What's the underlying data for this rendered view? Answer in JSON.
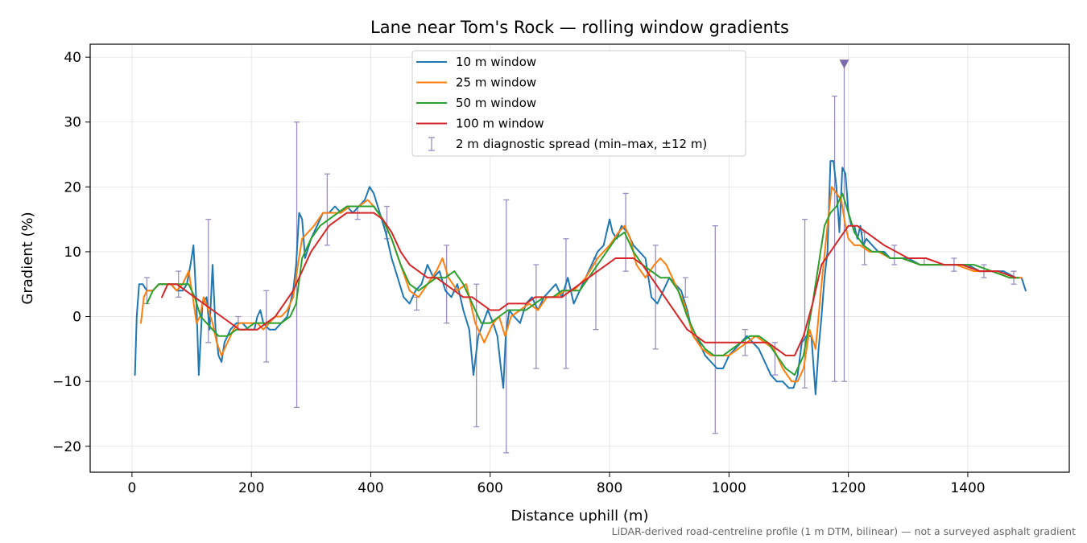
{
  "chart_data": {
    "type": "line",
    "title": "Lane near Tom's Rock — rolling window gradients",
    "xlabel": "Distance uphill (m)",
    "ylabel": "Gradient (%)",
    "xlim": [
      -70,
      1570
    ],
    "ylim": [
      -24,
      42
    ],
    "xticks": [
      0,
      200,
      400,
      600,
      800,
      1000,
      1200,
      1400
    ],
    "yticks": [
      -20,
      -10,
      0,
      10,
      20,
      30,
      40
    ],
    "xtick_labels": [
      "0",
      "200",
      "400",
      "600",
      "800",
      "1000",
      "1200",
      "1400"
    ],
    "ytick_labels": [
      "−20",
      "−10",
      "0",
      "10",
      "20",
      "30",
      "40"
    ],
    "grid": true,
    "legend_position": "top-center",
    "footnote": "LiDAR-derived road-centreline profile (1 m DTM, bilinear) — not a surveyed asphalt gradient",
    "series": [
      {
        "name": "10 m window",
        "color": "#1f77b4",
        "x": [
          5,
          8,
          12,
          18,
          25,
          35,
          45,
          55,
          65,
          75,
          85,
          92,
          98,
          103,
          108,
          112,
          118,
          125,
          130,
          135,
          140,
          145,
          150,
          155,
          165,
          175,
          185,
          195,
          205,
          210,
          215,
          220,
          230,
          240,
          250,
          260,
          265,
          270,
          275,
          280,
          285,
          290,
          300,
          310,
          320,
          330,
          340,
          350,
          360,
          370,
          380,
          390,
          398,
          405,
          415,
          425,
          435,
          445,
          455,
          465,
          475,
          485,
          495,
          505,
          515,
          525,
          535,
          545,
          555,
          565,
          572,
          580,
          588,
          596,
          605,
          612,
          618,
          622,
          626,
          632,
          640,
          650,
          660,
          670,
          680,
          690,
          700,
          710,
          720,
          730,
          740,
          750,
          760,
          770,
          780,
          790,
          800,
          805,
          812,
          820,
          830,
          840,
          850,
          860,
          870,
          880,
          890,
          900,
          910,
          920,
          930,
          940,
          950,
          960,
          970,
          980,
          990,
          1000,
          1010,
          1020,
          1030,
          1040,
          1050,
          1060,
          1070,
          1080,
          1090,
          1100,
          1108,
          1115,
          1122,
          1130,
          1138,
          1145,
          1150,
          1155,
          1160,
          1165,
          1170,
          1175,
          1180,
          1185,
          1190,
          1195,
          1200,
          1205,
          1210,
          1215,
          1220,
          1225,
          1230,
          1240,
          1250,
          1260,
          1270,
          1280,
          1300,
          1320,
          1340,
          1360,
          1380,
          1400,
          1420,
          1440,
          1460,
          1480,
          1490,
          1497
        ],
        "y": [
          -9,
          0,
          5,
          5,
          4,
          4,
          5,
          5,
          5,
          4,
          4,
          5,
          8,
          11,
          2,
          -9,
          2,
          3,
          -2,
          8,
          -2,
          -6,
          -7,
          -4,
          -2,
          -1,
          -1,
          -2,
          -2,
          0,
          1,
          -1,
          -2,
          -2,
          -1,
          0,
          2,
          4,
          8,
          16,
          15,
          9,
          12,
          14,
          16,
          16,
          17,
          16,
          17,
          16,
          17,
          18,
          20,
          19,
          16,
          13,
          9,
          6,
          3,
          2,
          4,
          5,
          8,
          6,
          7,
          4,
          3,
          5,
          1,
          -2,
          -9,
          -3,
          -1,
          1,
          -1,
          -3,
          -8,
          -11,
          -3,
          1,
          0,
          -1,
          2,
          3,
          1,
          3,
          4,
          5,
          3,
          6,
          2,
          4,
          6,
          8,
          10,
          11,
          15,
          13,
          12,
          14,
          13,
          11,
          10,
          9,
          3,
          2,
          4,
          6,
          5,
          4,
          1,
          -3,
          -4,
          -6,
          -7,
          -8,
          -8,
          -6,
          -5,
          -4,
          -3,
          -4,
          -5,
          -7,
          -9,
          -10,
          -10,
          -11,
          -11,
          -9,
          -4,
          -3,
          -3,
          -12,
          -5,
          0,
          6,
          10,
          24,
          24,
          20,
          13,
          23,
          22,
          16,
          14,
          14,
          12,
          14,
          11,
          12,
          11,
          10,
          10,
          9,
          9,
          9,
          8,
          8,
          8,
          8,
          8,
          7,
          7,
          7,
          6,
          6,
          4
        ]
      },
      {
        "name": "25 m window",
        "color": "#ff7f0e",
        "x": [
          15,
          20,
          25,
          35,
          45,
          55,
          65,
          75,
          85,
          95,
          102,
          108,
          114,
          120,
          128,
          135,
          142,
          150,
          160,
          170,
          180,
          190,
          200,
          210,
          220,
          230,
          240,
          250,
          260,
          270,
          278,
          285,
          295,
          305,
          320,
          335,
          350,
          365,
          380,
          395,
          405,
          420,
          435,
          450,
          465,
          480,
          495,
          510,
          520,
          530,
          545,
          560,
          575,
          590,
          605,
          615,
          625,
          635,
          650,
          665,
          680,
          695,
          710,
          725,
          740,
          760,
          780,
          800,
          815,
          825,
          835,
          845,
          860,
          875,
          885,
          895,
          910,
          925,
          940,
          955,
          970,
          985,
          1000,
          1015,
          1030,
          1045,
          1060,
          1075,
          1090,
          1105,
          1115,
          1125,
          1135,
          1145,
          1155,
          1165,
          1172,
          1180,
          1188,
          1195,
          1200,
          1210,
          1220,
          1235,
          1250,
          1270,
          1290,
          1320,
          1350,
          1380,
          1410,
          1440,
          1470,
          1490
        ],
        "y": [
          -1,
          3,
          4,
          4,
          5,
          5,
          5,
          4,
          5,
          7,
          3,
          -1,
          0,
          3,
          1,
          -1,
          -4,
          -6,
          -4,
          -2,
          -1,
          -1,
          -1,
          -1,
          -2,
          -1,
          0,
          0,
          1,
          3,
          8,
          12,
          13,
          14,
          16,
          16,
          16,
          17,
          17,
          18,
          17,
          15,
          12,
          8,
          4,
          3,
          5,
          7,
          9,
          6,
          4,
          5,
          -1,
          -4,
          -1,
          0,
          -3,
          0,
          1,
          2,
          1,
          3,
          3,
          4,
          4,
          6,
          9,
          11,
          13,
          14,
          12,
          8,
          6,
          8,
          9,
          8,
          5,
          2,
          -3,
          -5,
          -6,
          -6,
          -6,
          -5,
          -4,
          -3,
          -4,
          -5,
          -8,
          -10,
          -10,
          -8,
          -2,
          -5,
          5,
          14,
          20,
          19,
          18,
          14,
          12,
          11,
          11,
          10,
          10,
          9,
          9,
          8,
          8,
          8,
          7,
          7,
          6,
          6
        ]
      },
      {
        "name": "50 m window",
        "color": "#2ca02c",
        "x": [
          25,
          35,
          45,
          55,
          65,
          75,
          85,
          95,
          105,
          115,
          125,
          135,
          145,
          160,
          175,
          190,
          205,
          220,
          235,
          250,
          265,
          275,
          285,
          300,
          315,
          330,
          345,
          360,
          375,
          390,
          405,
          420,
          435,
          450,
          465,
          480,
          495,
          510,
          525,
          540,
          555,
          570,
          585,
          600,
          615,
          630,
          645,
          660,
          675,
          690,
          705,
          720,
          735,
          750,
          765,
          780,
          795,
          810,
          825,
          840,
          855,
          870,
          885,
          900,
          915,
          930,
          945,
          960,
          975,
          990,
          1005,
          1020,
          1035,
          1050,
          1065,
          1080,
          1095,
          1110,
          1125,
          1140,
          1150,
          1160,
          1170,
          1180,
          1190,
          1200,
          1210,
          1225,
          1240,
          1255,
          1270,
          1290,
          1320,
          1350,
          1380,
          1410,
          1440,
          1470,
          1485
        ],
        "y": [
          2,
          4,
          5,
          5,
          5,
          5,
          5,
          5,
          3,
          0,
          -1,
          -2,
          -3,
          -3,
          -2,
          -2,
          -1,
          -1,
          -1,
          -1,
          0,
          2,
          9,
          12,
          14,
          15,
          16,
          17,
          17,
          17,
          17,
          15,
          12,
          8,
          5,
          4,
          5,
          6,
          6,
          7,
          5,
          2,
          -1,
          -1,
          0,
          1,
          1,
          1,
          2,
          3,
          3,
          4,
          4,
          4,
          6,
          8,
          10,
          12,
          13,
          10,
          8,
          7,
          6,
          6,
          4,
          0,
          -3,
          -5,
          -6,
          -6,
          -5,
          -4,
          -3,
          -3,
          -4,
          -6,
          -8,
          -9,
          -6,
          2,
          8,
          14,
          16,
          17,
          19,
          16,
          13,
          11,
          10,
          10,
          9,
          9,
          8,
          8,
          8,
          8,
          7,
          6,
          6
        ]
      },
      {
        "name": "100 m window",
        "color": "#d62728",
        "x": [
          50,
          60,
          75,
          90,
          105,
          120,
          135,
          150,
          165,
          180,
          195,
          210,
          225,
          240,
          255,
          270,
          285,
          300,
          315,
          330,
          345,
          360,
          375,
          390,
          405,
          420,
          435,
          450,
          465,
          480,
          495,
          510,
          525,
          540,
          555,
          570,
          585,
          600,
          615,
          630,
          645,
          660,
          675,
          690,
          705,
          720,
          735,
          750,
          765,
          780,
          795,
          810,
          825,
          840,
          855,
          870,
          885,
          900,
          915,
          930,
          945,
          960,
          975,
          990,
          1005,
          1020,
          1035,
          1050,
          1065,
          1080,
          1095,
          1110,
          1125,
          1140,
          1155,
          1170,
          1185,
          1200,
          1215,
          1230,
          1245,
          1260,
          1280,
          1300,
          1330,
          1360,
          1390,
          1420,
          1450,
          1480
        ],
        "y": [
          3,
          5,
          5,
          4,
          3,
          2,
          1,
          0,
          -1,
          -2,
          -2,
          -2,
          -1,
          0,
          2,
          4,
          7,
          10,
          12,
          14,
          15,
          16,
          16,
          16,
          16,
          15,
          13,
          10,
          8,
          7,
          6,
          6,
          5,
          4,
          3,
          3,
          2,
          1,
          1,
          2,
          2,
          2,
          3,
          3,
          3,
          3,
          4,
          5,
          6,
          7,
          8,
          9,
          9,
          9,
          8,
          6,
          4,
          2,
          0,
          -2,
          -3,
          -4,
          -4,
          -4,
          -4,
          -4,
          -4,
          -4,
          -4,
          -5,
          -6,
          -6,
          -3,
          2,
          8,
          10,
          12,
          14,
          14,
          13,
          12,
          11,
          10,
          9,
          9,
          8,
          8,
          7,
          7,
          6
        ]
      }
    ],
    "errorbars": {
      "name": "2 m diagnostic spread (min–max, ±12 m)",
      "color": "#9a8fbf",
      "points": [
        {
          "x": 25,
          "lo": 2,
          "hi": 6
        },
        {
          "x": 78,
          "lo": 3,
          "hi": 7
        },
        {
          "x": 128,
          "lo": -4,
          "hi": 15
        },
        {
          "x": 178,
          "lo": -2,
          "hi": 0
        },
        {
          "x": 225,
          "lo": -7,
          "hi": 4
        },
        {
          "x": 276,
          "lo": -14,
          "hi": 30
        },
        {
          "x": 327,
          "lo": 11,
          "hi": 22
        },
        {
          "x": 378,
          "lo": 15,
          "hi": 17
        },
        {
          "x": 427,
          "lo": 12,
          "hi": 17
        },
        {
          "x": 477,
          "lo": 1,
          "hi": 3
        },
        {
          "x": 527,
          "lo": -1,
          "hi": 11
        },
        {
          "x": 577,
          "lo": -17,
          "hi": 5
        },
        {
          "x": 627,
          "lo": -21,
          "hi": 18
        },
        {
          "x": 677,
          "lo": -8,
          "hi": 8
        },
        {
          "x": 727,
          "lo": -8,
          "hi": 12
        },
        {
          "x": 777,
          "lo": -2,
          "hi": 9
        },
        {
          "x": 827,
          "lo": 7,
          "hi": 19
        },
        {
          "x": 877,
          "lo": -5,
          "hi": 11
        },
        {
          "x": 927,
          "lo": 3,
          "hi": 6
        },
        {
          "x": 977,
          "lo": -18,
          "hi": 14
        },
        {
          "x": 1027,
          "lo": -6,
          "hi": -2
        },
        {
          "x": 1077,
          "lo": -9,
          "hi": -4
        },
        {
          "x": 1127,
          "lo": -11,
          "hi": 15
        },
        {
          "x": 1177,
          "lo": -10,
          "hi": 34
        },
        {
          "x": 1193,
          "lo": -10,
          "hi": 39
        },
        {
          "x": 1227,
          "lo": 8,
          "hi": 13
        },
        {
          "x": 1277,
          "lo": 8,
          "hi": 11
        },
        {
          "x": 1327,
          "lo": 8,
          "hi": 9
        },
        {
          "x": 1377,
          "lo": 7,
          "hi": 9
        },
        {
          "x": 1427,
          "lo": 6,
          "hi": 8
        },
        {
          "x": 1477,
          "lo": 5,
          "hi": 7
        }
      ]
    },
    "marker": {
      "x": 1193,
      "y": 39,
      "shape": "triangle-down",
      "color": "#7b6ba8"
    }
  }
}
